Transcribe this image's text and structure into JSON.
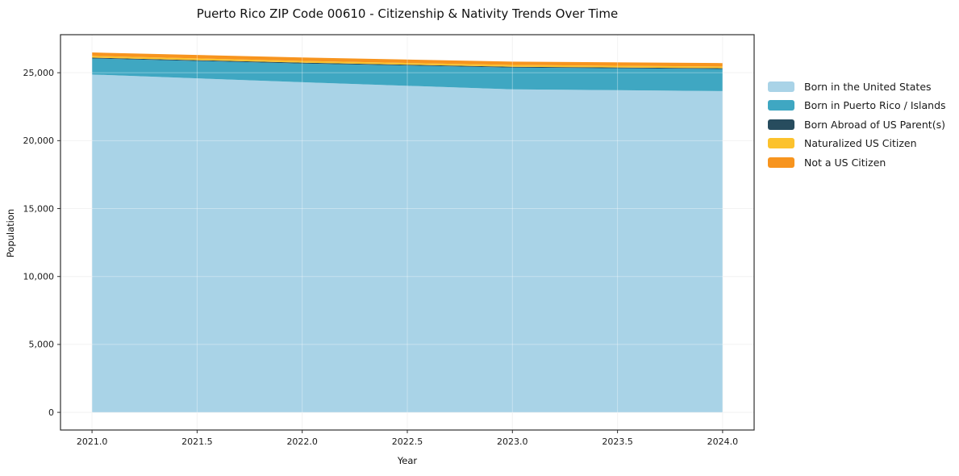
{
  "chart_data": {
    "type": "area",
    "stacked": true,
    "title": "Puerto Rico ZIP Code 00610 - Citizenship & Nativity Trends Over Time",
    "xlabel": "Year",
    "ylabel": "Population",
    "x": [
      2021,
      2022,
      2023,
      2024
    ],
    "series": [
      {
        "name": "Born in the United States",
        "color": "#a9d3e7",
        "values": [
          24870,
          24300,
          23780,
          23650
        ]
      },
      {
        "name": "Born in Puerto Rico / Islands",
        "color": "#3fa7c2",
        "values": [
          1180,
          1380,
          1600,
          1620
        ]
      },
      {
        "name": "Born Abroad of US Parent(s)",
        "color": "#274c5e",
        "values": [
          60,
          60,
          60,
          60
        ]
      },
      {
        "name": "Naturalized US Citizen",
        "color": "#fcc22d",
        "values": [
          130,
          130,
          130,
          130
        ]
      },
      {
        "name": "Not a US Citizen",
        "color": "#f7941e",
        "values": [
          250,
          250,
          250,
          250
        ]
      }
    ],
    "xlim": [
      2020.85,
      2024.15
    ],
    "ylim": [
      -1300,
      27800
    ],
    "xticks": [
      2021.0,
      2021.5,
      2022.0,
      2022.5,
      2023.0,
      2023.5,
      2024.0
    ],
    "xtick_labels": [
      "2021.0",
      "2021.5",
      "2022.0",
      "2022.5",
      "2023.0",
      "2023.5",
      "2024.0"
    ],
    "yticks": [
      0,
      5000,
      10000,
      15000,
      20000,
      25000
    ],
    "ytick_labels": [
      "0",
      "5,000",
      "10,000",
      "15,000",
      "20,000",
      "25,000"
    ],
    "grid": true,
    "legend_position": "right"
  }
}
